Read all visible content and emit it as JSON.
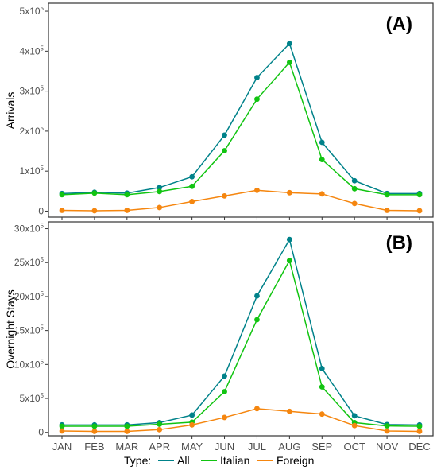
{
  "colors": {
    "All": "#00828a",
    "Italian": "#11c411",
    "Foreign": "#f5860f"
  },
  "legend": {
    "title": "Type:",
    "placement": "bottom"
  },
  "chart_data": [
    {
      "type": "line",
      "panel_label": "(A)",
      "ylabel": "Arrivals",
      "xlabel": "",
      "categories": [
        "JAN",
        "FEB",
        "MAR",
        "APR",
        "MAY",
        "JUN",
        "JUL",
        "AUG",
        "SEP",
        "OCT",
        "NOV",
        "DEC"
      ],
      "ylim": [
        -15000,
        520000
      ],
      "yticks": [
        {
          "value": 0,
          "base": "0",
          "exp": ""
        },
        {
          "value": 100000,
          "base": "1x10",
          "exp": "5"
        },
        {
          "value": 200000,
          "base": "2x10",
          "exp": "5"
        },
        {
          "value": 300000,
          "base": "3x10",
          "exp": "5"
        },
        {
          "value": 400000,
          "base": "4x10",
          "exp": "5"
        },
        {
          "value": 500000,
          "base": "5x10",
          "exp": "5"
        }
      ],
      "grid": false,
      "series": [
        {
          "name": "All",
          "values": [
            44000,
            47000,
            45000,
            59000,
            86000,
            190000,
            334000,
            419000,
            172000,
            76000,
            44000,
            44000
          ]
        },
        {
          "name": "Italian",
          "values": [
            41000,
            45000,
            41000,
            49000,
            62000,
            151000,
            280000,
            372000,
            129000,
            56000,
            41000,
            41000
          ]
        },
        {
          "name": "Foreign",
          "values": [
            2000,
            1000,
            2000,
            9000,
            24000,
            38000,
            52000,
            46000,
            43000,
            19000,
            2000,
            1000
          ]
        }
      ]
    },
    {
      "type": "line",
      "panel_label": "(B)",
      "ylabel": "Overnight Stays",
      "xlabel": "",
      "categories": [
        "JAN",
        "FEB",
        "MAR",
        "APR",
        "MAY",
        "JUN",
        "JUL",
        "AUG",
        "SEP",
        "OCT",
        "NOV",
        "DEC"
      ],
      "ylim": [
        -50000,
        3100000
      ],
      "yticks": [
        {
          "value": 0,
          "base": "0",
          "exp": ""
        },
        {
          "value": 500000,
          "base": "5x10",
          "exp": "5"
        },
        {
          "value": 1000000,
          "base": "10x10",
          "exp": "5"
        },
        {
          "value": 1500000,
          "base": "15x10",
          "exp": "5"
        },
        {
          "value": 2000000,
          "base": "20x10",
          "exp": "5"
        },
        {
          "value": 2500000,
          "base": "25x10",
          "exp": "5"
        },
        {
          "value": 3000000,
          "base": "30x10",
          "exp": "5"
        }
      ],
      "grid": false,
      "series": [
        {
          "name": "All",
          "values": [
            110000,
            110000,
            110000,
            145000,
            255000,
            830000,
            2010000,
            2840000,
            940000,
            245000,
            115000,
            110000
          ]
        },
        {
          "name": "Italian",
          "values": [
            90000,
            90000,
            90000,
            120000,
            150000,
            600000,
            1660000,
            2530000,
            670000,
            145000,
            95000,
            90000
          ]
        },
        {
          "name": "Foreign",
          "values": [
            20000,
            15000,
            15000,
            40000,
            110000,
            220000,
            350000,
            310000,
            270000,
            100000,
            20000,
            15000
          ]
        }
      ]
    }
  ]
}
